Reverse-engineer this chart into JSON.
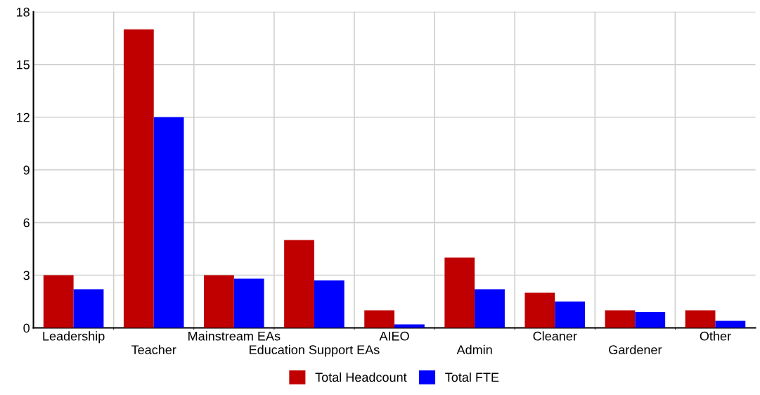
{
  "chart_data": {
    "type": "bar",
    "categories": [
      "Leadership",
      "Teacher",
      "Mainstream EAs",
      "Education Support EAs",
      "AIEO",
      "Admin",
      "Cleaner",
      "Gardener",
      "Other"
    ],
    "series": [
      {
        "name": "Total Headcount",
        "color": "#c00000",
        "values": [
          3,
          17,
          3,
          5,
          1,
          4,
          2,
          1,
          1
        ]
      },
      {
        "name": "Total FTE",
        "color": "#0000ff",
        "values": [
          2.2,
          12,
          2.8,
          2.7,
          0.2,
          2.2,
          1.5,
          0.9,
          0.4
        ]
      }
    ],
    "ylim": [
      0,
      18
    ],
    "yticks": [
      0,
      3,
      6,
      9,
      12,
      15,
      18
    ],
    "grid": true,
    "legend": "bottom"
  }
}
